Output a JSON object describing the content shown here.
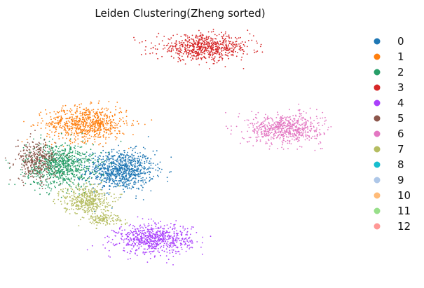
{
  "chart_data": {
    "type": "scatter",
    "title": "Leiden Clustering(Zheng sorted)",
    "xlabel": "",
    "ylabel": "",
    "grid": false,
    "axes_visible": false,
    "legend_placement": "right",
    "series": [
      {
        "name": "0",
        "color": "#1f77b4",
        "clusters": [
          {
            "x": 0.3,
            "y": 0.42,
            "sx": 0.05,
            "sy": 0.04,
            "n": 900
          }
        ]
      },
      {
        "name": "1",
        "color": "#ff7f0e",
        "clusters": [
          {
            "x": 0.2,
            "y": 0.61,
            "sx": 0.06,
            "sy": 0.035,
            "n": 750
          }
        ]
      },
      {
        "name": "2",
        "color": "#279e68",
        "clusters": [
          {
            "x": 0.12,
            "y": 0.44,
            "sx": 0.05,
            "sy": 0.045,
            "n": 850
          }
        ]
      },
      {
        "name": "3",
        "color": "#d62728",
        "clusters": [
          {
            "x": 0.55,
            "y": 0.92,
            "sx": 0.07,
            "sy": 0.025,
            "n": 700
          }
        ]
      },
      {
        "name": "4",
        "color": "#aa40fc",
        "clusters": [
          {
            "x": 0.4,
            "y": 0.14,
            "sx": 0.055,
            "sy": 0.03,
            "n": 700
          }
        ]
      },
      {
        "name": "5",
        "color": "#8c564b",
        "clusters": [
          {
            "x": 0.05,
            "y": 0.46,
            "sx": 0.03,
            "sy": 0.04,
            "n": 350
          }
        ]
      },
      {
        "name": "6",
        "color": "#e377c2",
        "clusters": [
          {
            "x": 0.79,
            "y": 0.59,
            "sx": 0.055,
            "sy": 0.03,
            "n": 650
          }
        ]
      },
      {
        "name": "7",
        "color": "#b5bd61",
        "clusters": [
          {
            "x": 0.2,
            "y": 0.3,
            "sx": 0.035,
            "sy": 0.03,
            "n": 450
          },
          {
            "x": 0.25,
            "y": 0.22,
            "sx": 0.03,
            "sy": 0.012,
            "n": 120
          }
        ]
      },
      {
        "name": "8",
        "color": "#17becf",
        "clusters": []
      },
      {
        "name": "9",
        "color": "#aec7e8",
        "clusters": []
      },
      {
        "name": "10",
        "color": "#ffbb78",
        "clusters": []
      },
      {
        "name": "11",
        "color": "#98df8a",
        "clusters": []
      },
      {
        "name": "12",
        "color": "#ff9896",
        "clusters": []
      }
    ]
  }
}
